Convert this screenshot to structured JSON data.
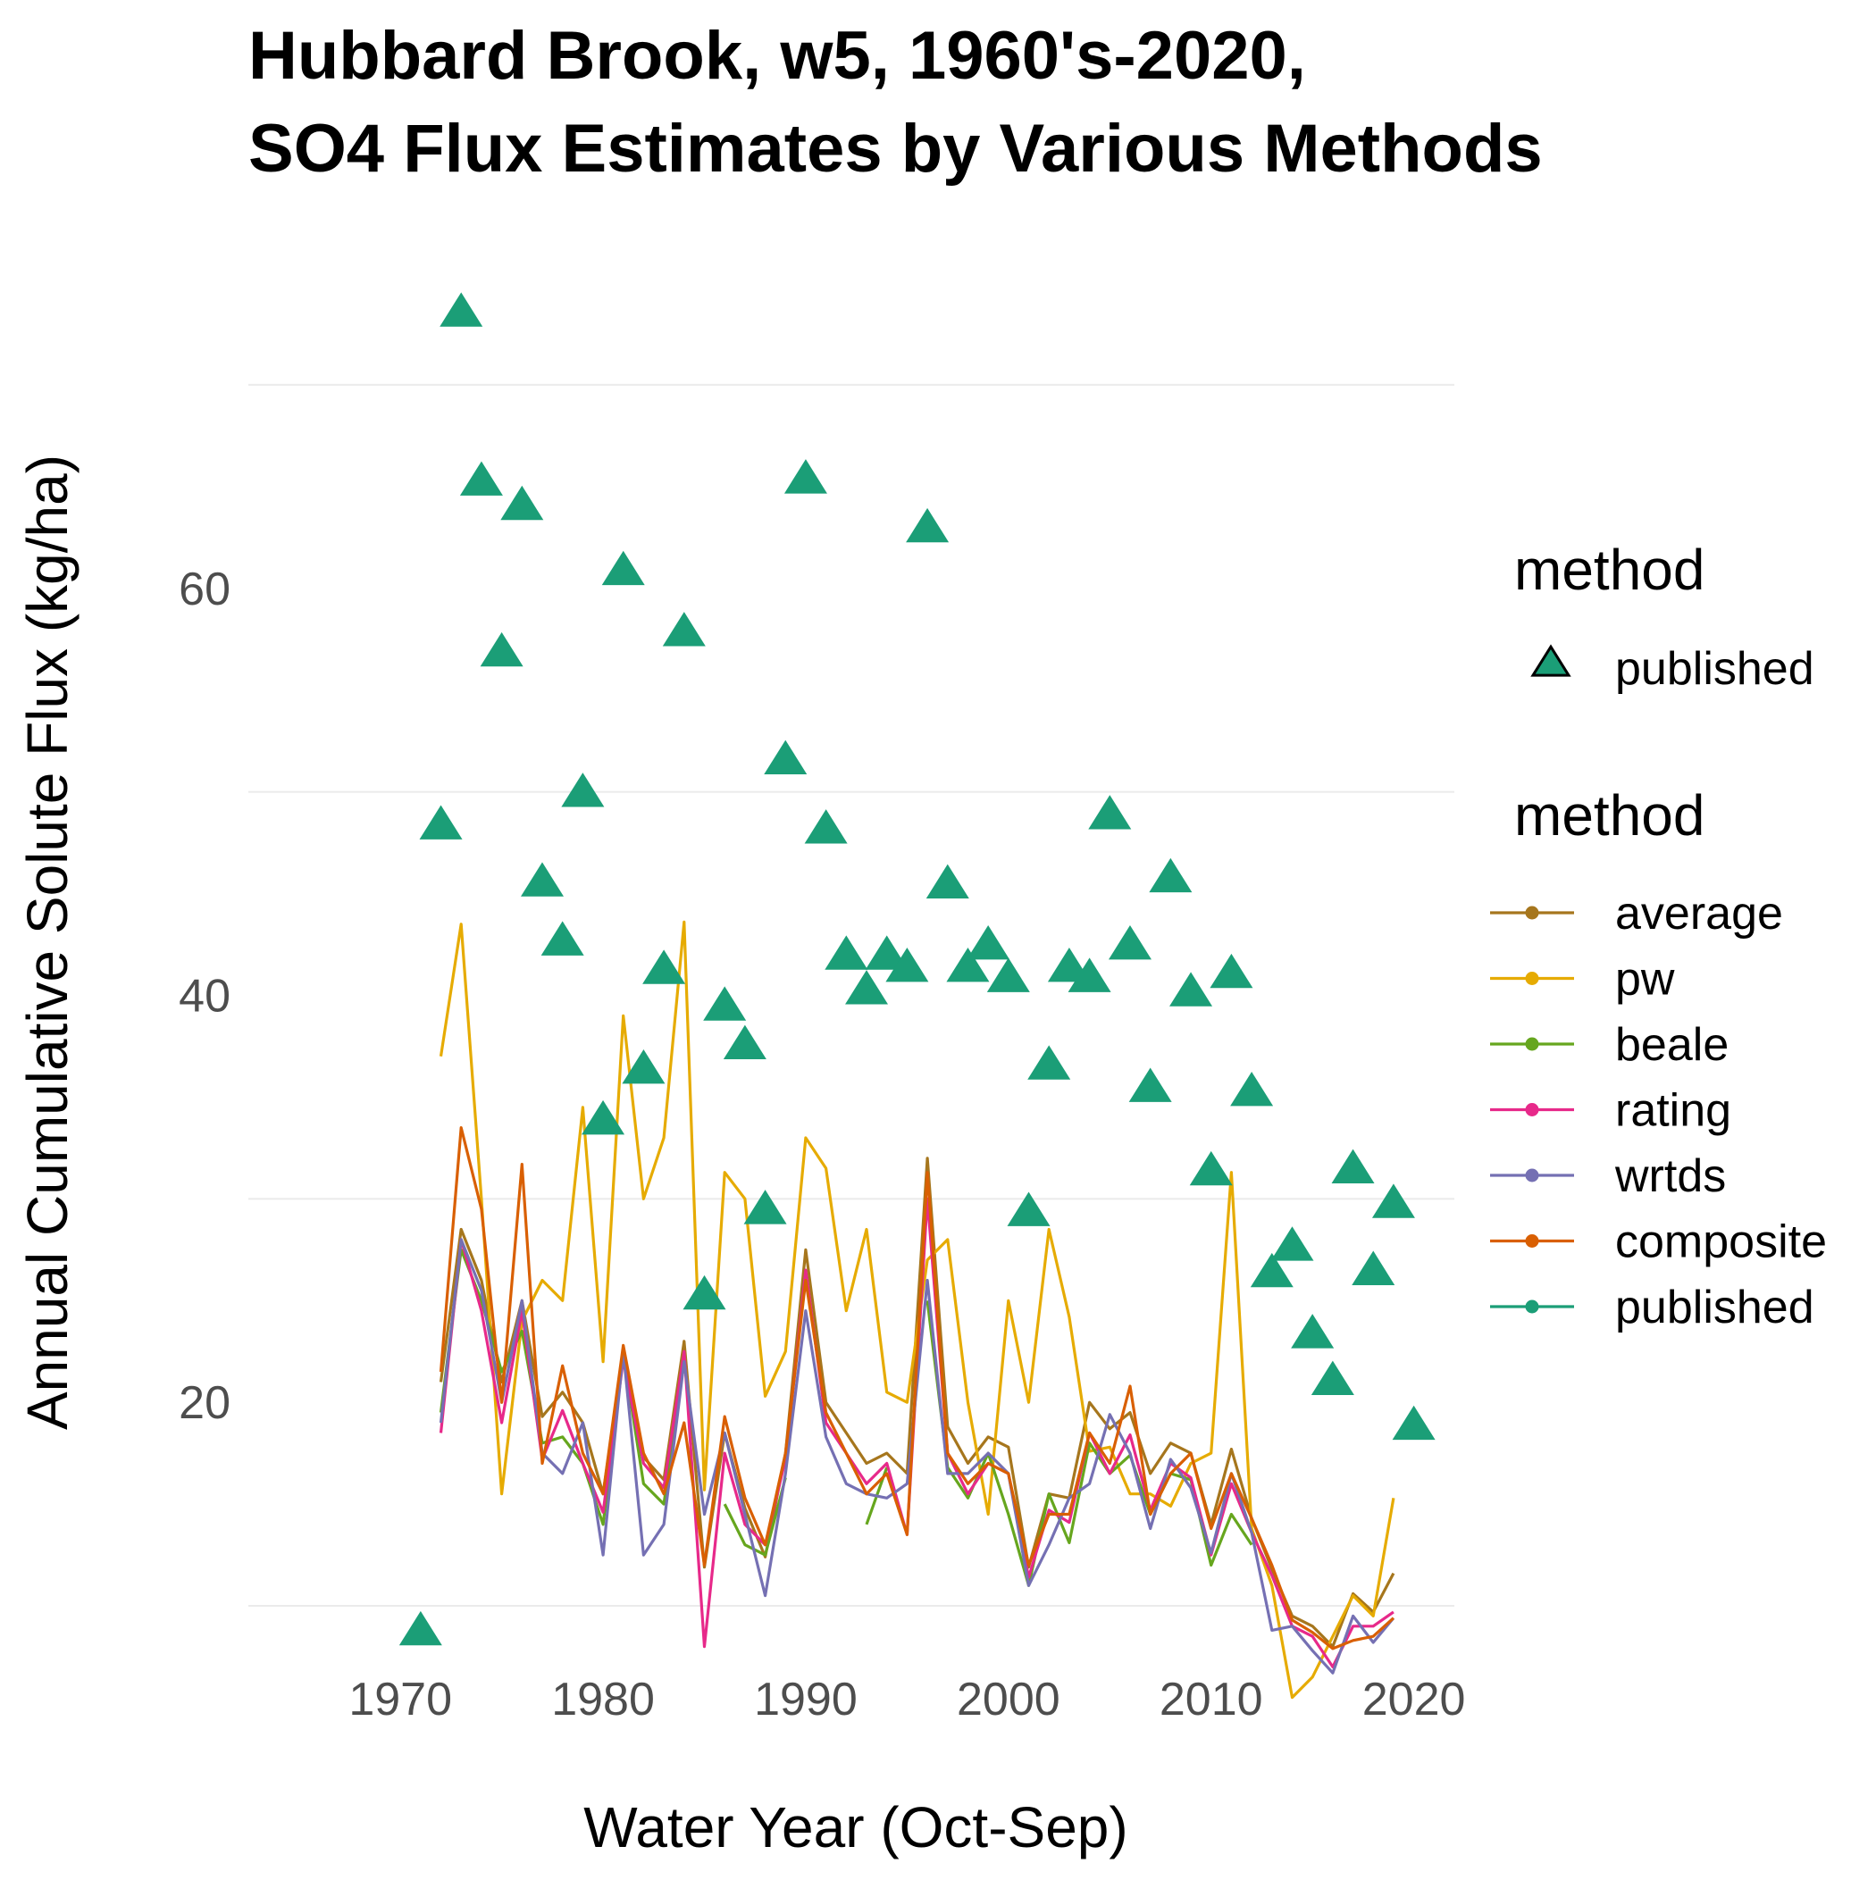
{
  "chart_data": {
    "type": "line",
    "title": [
      "Hubbard Brook, w5, 1960's-2020,",
      "SO4 Flux Estimates by Various Methods"
    ],
    "xlabel": "Water Year (Oct-Sep)",
    "ylabel": "Annual Cumulative Solute Flux (kg/ha)",
    "xlim": [
      1962.5,
      2022
    ],
    "ylim": [
      7.5,
      77.5
    ],
    "x_ticks": [
      1970,
      1980,
      1990,
      2000,
      2010,
      2020
    ],
    "y_ticks": [
      20,
      40,
      60
    ],
    "grid": true,
    "legend_position": "right",
    "legend_points": {
      "title": "method",
      "entries": [
        {
          "name": "published",
          "color": "#1b9e77",
          "shape": "triangle"
        }
      ]
    },
    "legend_lines": {
      "title": "method",
      "entries": [
        {
          "name": "average",
          "color": "#a6761d"
        },
        {
          "name": "pw",
          "color": "#e6ab02"
        },
        {
          "name": "beale",
          "color": "#66a61e"
        },
        {
          "name": "rating",
          "color": "#e7298a"
        },
        {
          "name": "wrtds",
          "color": "#7570b3"
        },
        {
          "name": "composite",
          "color": "#d95f02"
        },
        {
          "name": "published",
          "color": "#1b9e77"
        }
      ]
    },
    "published_points": {
      "name": "published",
      "x": [
        1971,
        1972,
        1973,
        1974,
        1975,
        1976,
        1977,
        1978,
        1979,
        1980,
        1981,
        1982,
        1983,
        1984,
        1985,
        1986,
        1987,
        1988,
        1989,
        1990,
        1991,
        1992,
        1993,
        1994,
        1995,
        1996,
        1997,
        1998,
        1999,
        2000,
        2001,
        2002,
        2003,
        2004,
        2005,
        2006,
        2007,
        2008,
        2009,
        2010,
        2011,
        2012,
        2013,
        2014,
        2015,
        2016,
        2017,
        2018,
        2019,
        2020
      ],
      "y": [
        8.7,
        48.3,
        73.5,
        65.2,
        56.8,
        64.0,
        45.5,
        42.6,
        49.9,
        33.8,
        60.8,
        36.3,
        41.2,
        57.8,
        25.2,
        39.4,
        37.5,
        29.4,
        51.5,
        65.3,
        48.1,
        41.9,
        40.2,
        41.9,
        41.3,
        62.9,
        45.4,
        41.3,
        42.4,
        40.8,
        29.3,
        36.5,
        41.3,
        40.8,
        48.8,
        42.4,
        35.4,
        45.7,
        40.1,
        31.3,
        41.0,
        35.2,
        26.3,
        27.6,
        23.3,
        21.0,
        31.4,
        26.4,
        29.7,
        18.8
      ]
    },
    "x": [
      1972,
      1973,
      1974,
      1975,
      1976,
      1977,
      1978,
      1979,
      1980,
      1981,
      1982,
      1983,
      1984,
      1985,
      1986,
      1987,
      1988,
      1989,
      1990,
      1991,
      1992,
      1993,
      1994,
      1995,
      1996,
      1997,
      1998,
      1999,
      2000,
      2001,
      2002,
      2003,
      2004,
      2005,
      2006,
      2007,
      2008,
      2009,
      2010,
      2011,
      2012,
      2013,
      2014,
      2015,
      2016,
      2017,
      2018,
      2019
    ],
    "series": [
      {
        "name": "average",
        "values": [
          21.0,
          28.5,
          26.0,
          21.0,
          25.0,
          19.3,
          20.5,
          19.0,
          15.5,
          22.4,
          17.3,
          16.2,
          23.0,
          11.9,
          18.5,
          14.8,
          12.4,
          17.5,
          27.5,
          20.0,
          18.5,
          17.0,
          17.5,
          16.5,
          32.0,
          18.8,
          17.0,
          18.3,
          17.8,
          11.9,
          15.5,
          15.3,
          20.0,
          18.7,
          19.5,
          16.5,
          18.0,
          17.5,
          14.0,
          17.7,
          14.3,
          11.8,
          9.5,
          9.0,
          8.0,
          10.6,
          9.7,
          11.6
        ]
      },
      {
        "name": "pw",
        "values": [
          37.0,
          43.5,
          30.0,
          15.5,
          24.0,
          26.0,
          25.0,
          34.5,
          22.0,
          39.0,
          30.0,
          33.0,
          43.6,
          15.7,
          31.3,
          30.0,
          20.3,
          22.5,
          33.0,
          31.5,
          24.5,
          28.5,
          20.5,
          20.0,
          27.0,
          28.0,
          20.0,
          14.5,
          25.0,
          20.0,
          28.5,
          24.2,
          17.6,
          17.8,
          15.5,
          15.5,
          14.9,
          17.0,
          17.5,
          31.3,
          13.8,
          11.0,
          5.5,
          6.5,
          8.5,
          10.5,
          9.5,
          15.3
        ]
      },
      {
        "name": "beale",
        "values": [
          19.5,
          27.5,
          25.0,
          21.5,
          23.5,
          18.0,
          18.3,
          17.0,
          14.0,
          22.4,
          16.0,
          15.0,
          22.0,
          null,
          15.0,
          13.0,
          12.5,
          16.3,
          null,
          null,
          null,
          14.0,
          16.8,
          null,
          25.0,
          16.8,
          15.3,
          17.5,
          14.5,
          11.0,
          15.5,
          13.1,
          18.0,
          16.5,
          17.4,
          14.5,
          16.5,
          16.2,
          12.0,
          14.5,
          13.0,
          null,
          null,
          null,
          null,
          null,
          null,
          null
        ]
      },
      {
        "name": "rating",
        "values": [
          18.5,
          28.0,
          24.5,
          19.0,
          24.5,
          17.2,
          19.6,
          17.0,
          14.6,
          22.1,
          17.0,
          15.8,
          22.5,
          8.0,
          17.5,
          14.0,
          13.0,
          17.2,
          26.5,
          19.0,
          17.5,
          16.0,
          17.0,
          13.5,
          30.0,
          17.5,
          15.5,
          17.0,
          16.5,
          11.4,
          14.7,
          14.1,
          18.5,
          16.5,
          18.4,
          14.7,
          17.0,
          16.3,
          12.5,
          16.0,
          13.6,
          11.5,
          9.0,
          8.5,
          7.0,
          9.0,
          9.0,
          9.7
        ]
      },
      {
        "name": "wrtds",
        "values": [
          19.0,
          28.0,
          25.5,
          20.0,
          25.0,
          17.5,
          16.5,
          19.0,
          12.5,
          22.5,
          12.5,
          14.0,
          22.0,
          14.5,
          18.5,
          14.5,
          10.5,
          16.5,
          24.5,
          18.3,
          16.0,
          15.5,
          15.3,
          16.0,
          26.0,
          16.5,
          16.5,
          17.5,
          16.5,
          11.0,
          13.0,
          15.3,
          16.0,
          19.4,
          17.5,
          13.8,
          17.2,
          15.8,
          12.6,
          16.5,
          13.6,
          8.8,
          9.0,
          7.8,
          6.7,
          9.5,
          8.2,
          9.4
        ]
      },
      {
        "name": "composite",
        "values": [
          21.5,
          33.5,
          29.5,
          20.0,
          31.7,
          17.0,
          21.8,
          17.5,
          15.5,
          22.8,
          17.5,
          15.5,
          19.0,
          12.0,
          19.3,
          15.3,
          13.0,
          17.5,
          26.0,
          19.5,
          17.5,
          15.5,
          16.5,
          13.5,
          31.3,
          17.5,
          16.0,
          17.0,
          16.5,
          12.0,
          14.5,
          14.5,
          18.5,
          17.0,
          20.8,
          14.5,
          16.5,
          17.5,
          13.8,
          16.5,
          14.3,
          12.0,
          9.3,
          8.7,
          7.9,
          8.3,
          8.5,
          9.4
        ]
      }
    ]
  }
}
